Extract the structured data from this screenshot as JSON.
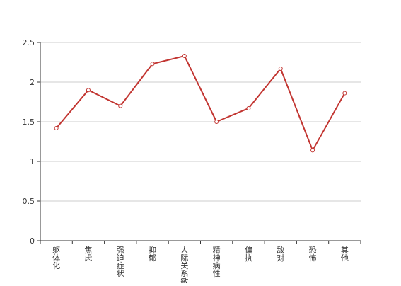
{
  "chart_data": {
    "type": "line",
    "title": "",
    "xlabel": "",
    "ylabel": "",
    "categories": [
      "躯体化",
      "焦虑",
      "强迫症状",
      "抑郁",
      "人际关系敏感",
      "精神病性",
      "偏执",
      "敌对",
      "恐怖",
      "其他"
    ],
    "series": [
      {
        "values": [
          1.42,
          1.9,
          1.7,
          2.23,
          2.33,
          1.5,
          1.67,
          2.17,
          1.14,
          1.86
        ]
      }
    ],
    "ylim": [
      0,
      2.5
    ],
    "yticks": [
      "0",
      "0.5",
      "1",
      "1.5",
      "2",
      "2.5"
    ],
    "grid": true,
    "colors": {
      "line": "#c23531",
      "grid": "#cccccc",
      "axis": "#333333",
      "text": "#333333"
    }
  }
}
